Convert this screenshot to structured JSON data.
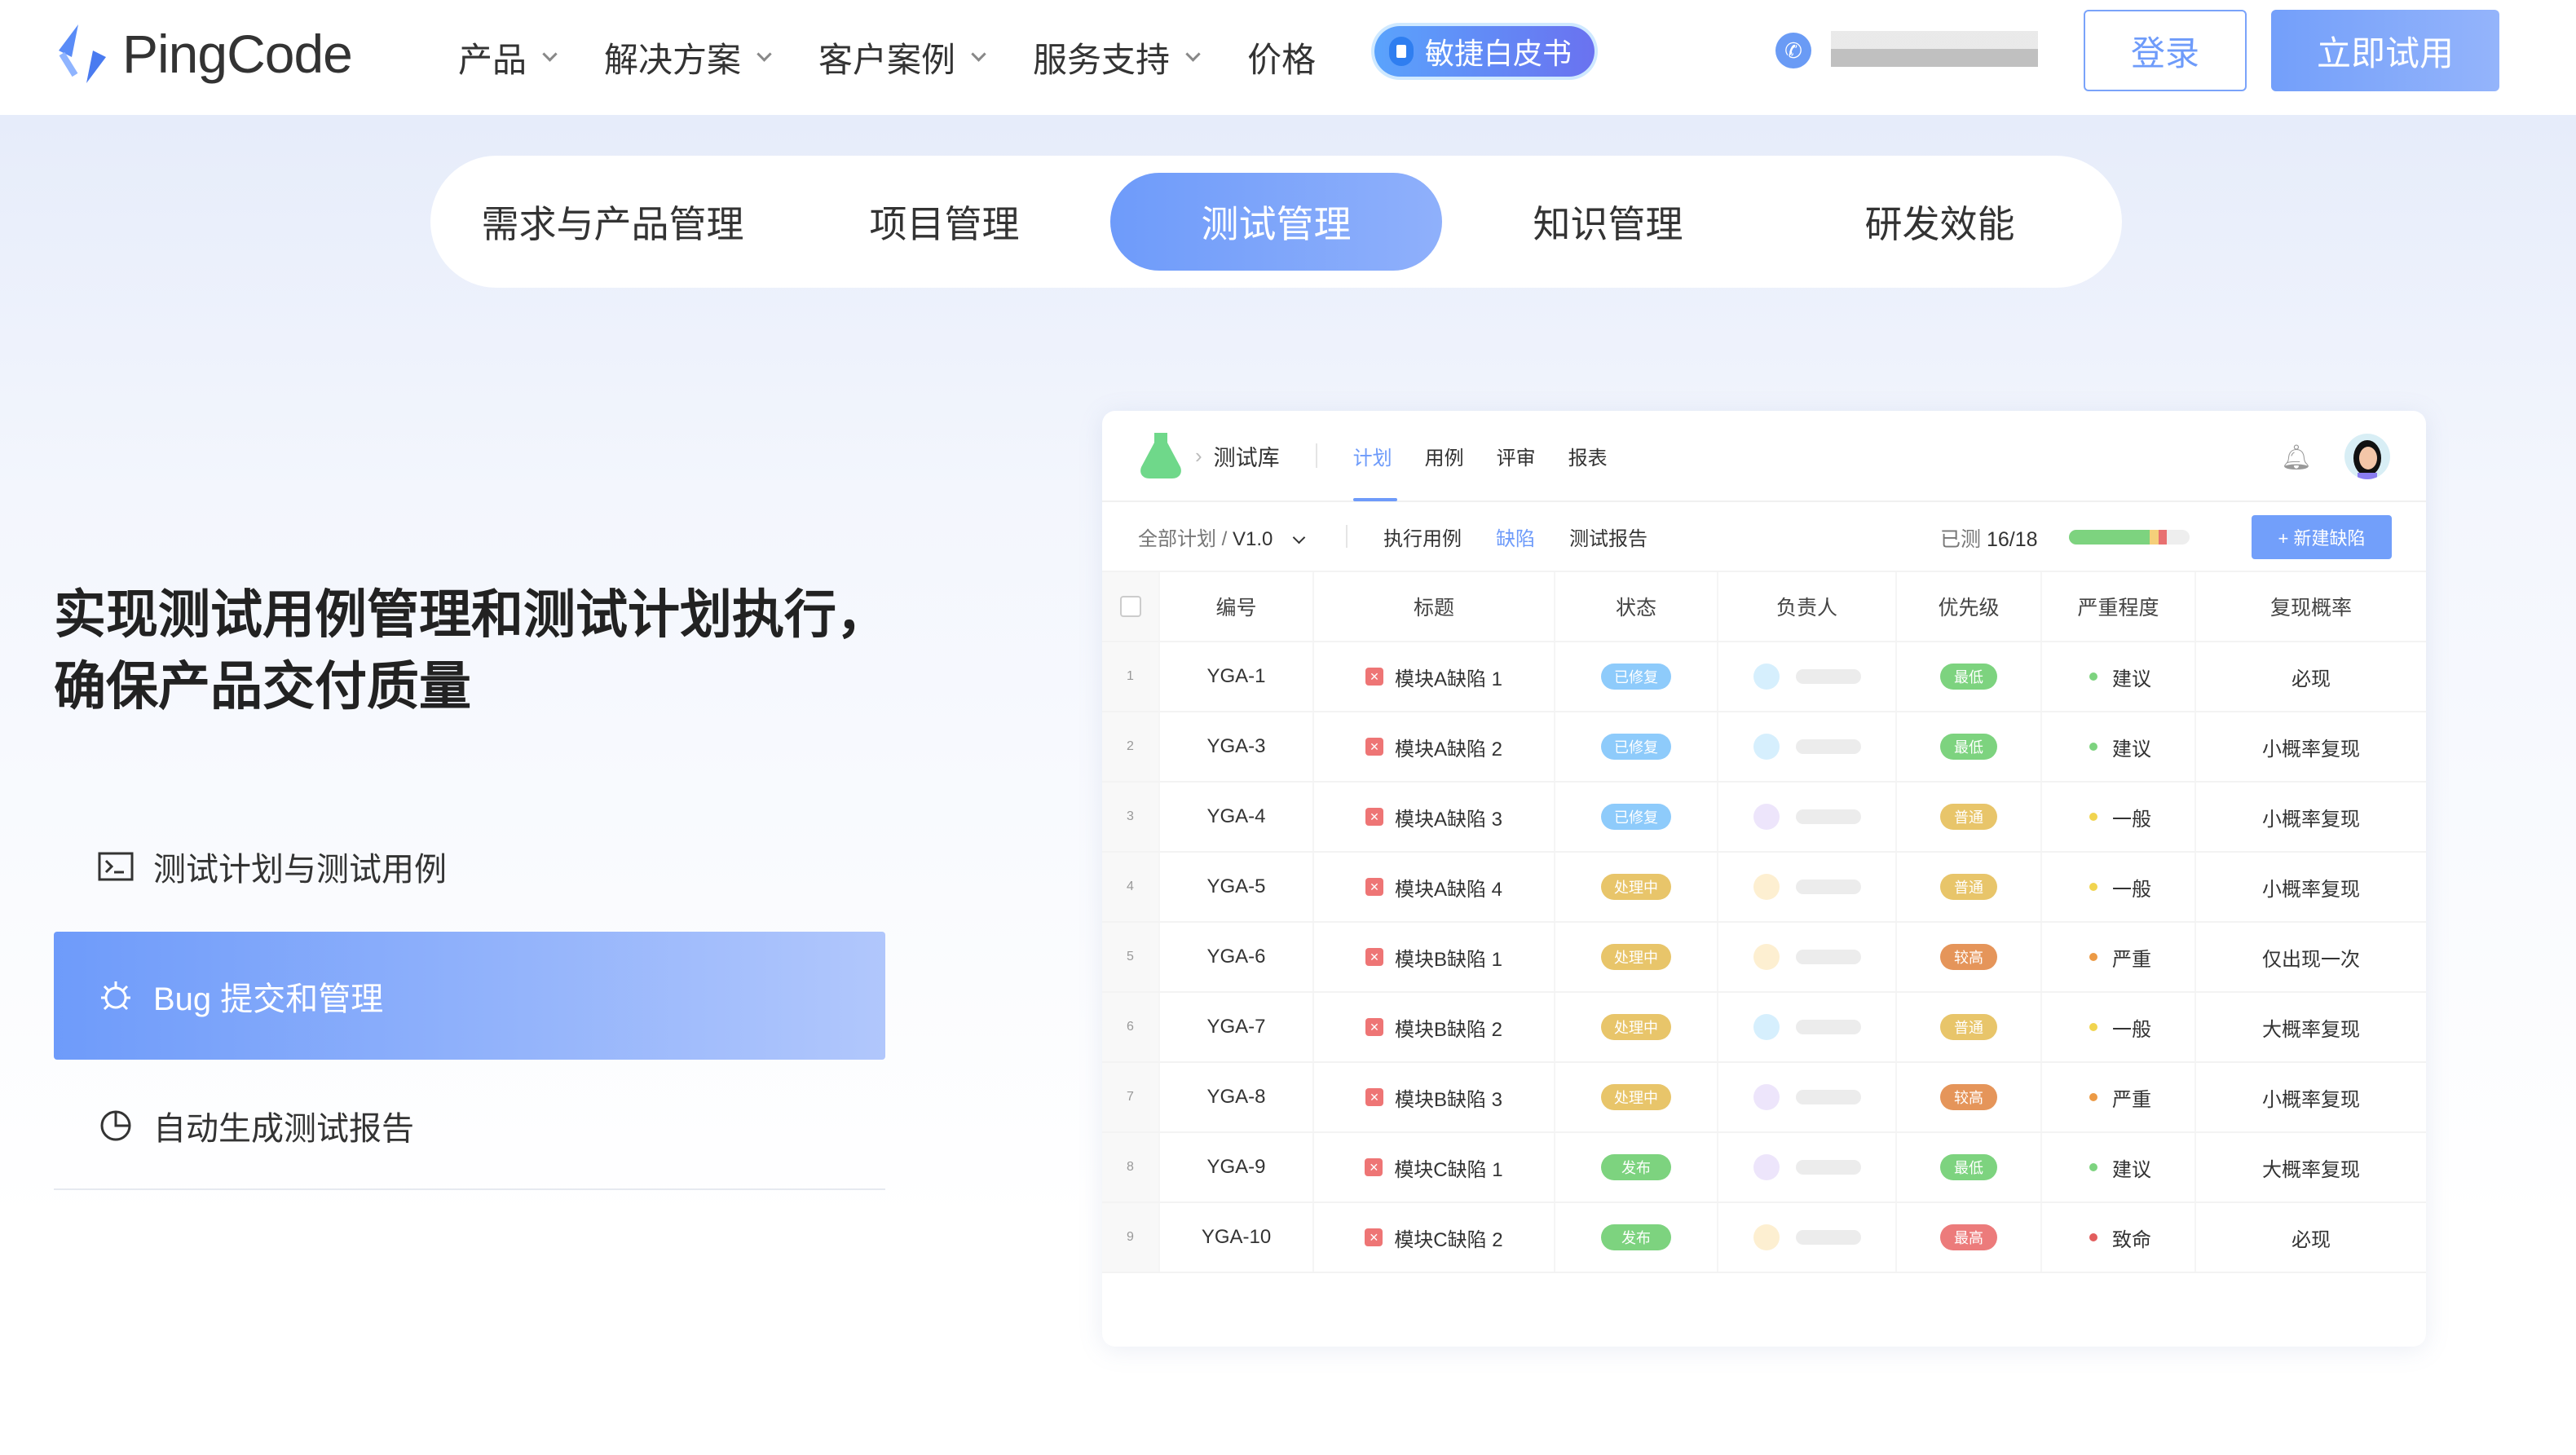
{
  "header": {
    "logo_text": "PingCode",
    "nav": [
      {
        "label": "产品",
        "dropdown": true
      },
      {
        "label": "解决方案",
        "dropdown": true
      },
      {
        "label": "客户案例",
        "dropdown": true
      },
      {
        "label": "服务支持",
        "dropdown": true
      },
      {
        "label": "价格",
        "dropdown": false
      }
    ],
    "whitepaper_label": "敏捷白皮书",
    "login_label": "登录",
    "trial_label": "立即试用",
    "accent": "#6e9bfa"
  },
  "tabs": [
    {
      "label": "需求与产品管理"
    },
    {
      "label": "项目管理"
    },
    {
      "label": "测试管理",
      "active": true
    },
    {
      "label": "知识管理"
    },
    {
      "label": "研发效能"
    }
  ],
  "hero": {
    "title": "实现测试用例管理和测试计划执行，\n确保产品交付质量",
    "features": [
      {
        "label": "测试计划与测试用例",
        "icon": "terminal-icon"
      },
      {
        "label": "Bug 提交和管理",
        "icon": "bug-icon",
        "active": true
      },
      {
        "label": "自动生成测试报告",
        "icon": "pie-chart-icon"
      }
    ]
  },
  "card": {
    "library": "测试库",
    "tabs": [
      {
        "label": "计划",
        "active": true
      },
      {
        "label": "用例"
      },
      {
        "label": "评审"
      },
      {
        "label": "报表"
      }
    ],
    "crumb_all": "全部计划",
    "crumb_version": "V1.0",
    "subtabs": [
      {
        "label": "执行用例"
      },
      {
        "label": "缺陷",
        "active": true
      },
      {
        "label": "测试报告"
      }
    ],
    "tested_label": "已测",
    "tested_value": "16/18",
    "progress": {
      "passed": 0.67,
      "warning": 0.07,
      "failed": 0.07
    },
    "new_bug_label": "+ 新建缺陷",
    "columns": [
      "编号",
      "标题",
      "状态",
      "负责人",
      "优先级",
      "严重程度",
      "复现概率"
    ],
    "status_colors": {
      "已修复": "#8ecbfb",
      "处理中": "#e8c56a",
      "发布": "#7dd37f"
    },
    "priority_colors": {
      "最低": "#7dd37f",
      "普通": "#e8c56a",
      "较高": "#e5955a",
      "最高": "#ec7b7b"
    },
    "severity_colors": {
      "建议": "#7dd37f",
      "一般": "#f1d44f",
      "严重": "#ec9a45",
      "致命": "#e25d5d"
    },
    "rows": [
      {
        "n": "1",
        "id": "YGA-1",
        "title": "模块A缺陷 1",
        "status": "已修复",
        "avatar": "#d6effd",
        "priority": "最低",
        "severity": "建议",
        "repro": "必现"
      },
      {
        "n": "2",
        "id": "YGA-3",
        "title": "模块A缺陷 2",
        "status": "已修复",
        "avatar": "#d6effd",
        "priority": "最低",
        "severity": "建议",
        "repro": "小概率复现"
      },
      {
        "n": "3",
        "id": "YGA-4",
        "title": "模块A缺陷 3",
        "status": "已修复",
        "avatar": "#ede5fb",
        "priority": "普通",
        "severity": "一般",
        "repro": "小概率复现"
      },
      {
        "n": "4",
        "id": "YGA-5",
        "title": "模块A缺陷 4",
        "status": "处理中",
        "avatar": "#fdefd1",
        "priority": "普通",
        "severity": "一般",
        "repro": "小概率复现"
      },
      {
        "n": "5",
        "id": "YGA-6",
        "title": "模块B缺陷 1",
        "status": "处理中",
        "avatar": "#fdefd1",
        "priority": "较高",
        "severity": "严重",
        "repro": "仅出现一次"
      },
      {
        "n": "6",
        "id": "YGA-7",
        "title": "模块B缺陷 2",
        "status": "处理中",
        "avatar": "#d6effd",
        "priority": "普通",
        "severity": "一般",
        "repro": "大概率复现"
      },
      {
        "n": "7",
        "id": "YGA-8",
        "title": "模块B缺陷 3",
        "status": "处理中",
        "avatar": "#ede5fb",
        "priority": "较高",
        "severity": "严重",
        "repro": "小概率复现"
      },
      {
        "n": "8",
        "id": "YGA-9",
        "title": "模块C缺陷 1",
        "status": "发布",
        "avatar": "#ede5fb",
        "priority": "最低",
        "severity": "建议",
        "repro": "大概率复现"
      },
      {
        "n": "9",
        "id": "YGA-10",
        "title": "模块C缺陷 2",
        "status": "发布",
        "avatar": "#fdefd1",
        "priority": "最高",
        "severity": "致命",
        "repro": "必现"
      }
    ]
  }
}
